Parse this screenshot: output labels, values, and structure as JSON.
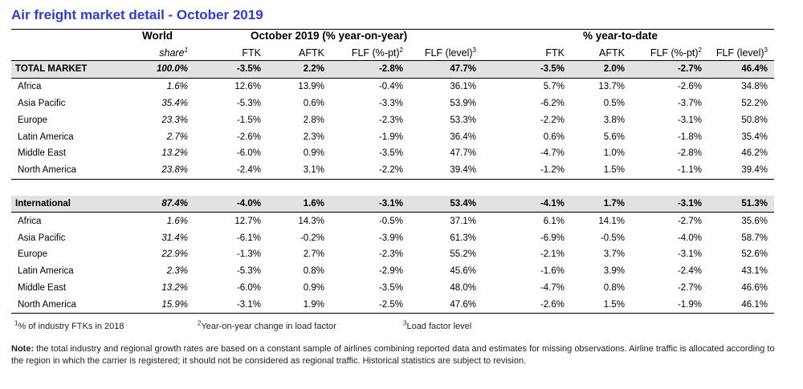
{
  "title": "Air freight market detail - October 2019",
  "header": {
    "world_label": "World",
    "share_label": "share",
    "share_sup": "1",
    "group1": "October 2019 (% year-on-year)",
    "group2": "% year-to-date",
    "cols": [
      "FTK",
      "AFTK",
      "FLF (%-pt)",
      "FLF (level)",
      "FTK",
      "AFTK",
      "FLF (%-pt)",
      "FLF (level)"
    ],
    "col_sups": [
      "",
      "",
      "2",
      "3",
      "",
      "",
      "2",
      "3"
    ]
  },
  "sections": [
    {
      "total": {
        "region": "TOTAL MARKET",
        "share": "100.0%",
        "values": [
          "-3.5%",
          "2.2%",
          "-2.8%",
          "47.7%",
          "-3.5%",
          "2.0%",
          "-2.7%",
          "46.4%"
        ]
      },
      "rows": [
        {
          "region": "Africa",
          "share": "1.6%",
          "values": [
            "12.6%",
            "13.9%",
            "-0.4%",
            "36.1%",
            "5.7%",
            "13.7%",
            "-2.6%",
            "34.8%"
          ]
        },
        {
          "region": "Asia Pacific",
          "share": "35.4%",
          "values": [
            "-5.3%",
            "0.6%",
            "-3.3%",
            "53.9%",
            "-6.2%",
            "0.5%",
            "-3.7%",
            "52.2%"
          ]
        },
        {
          "region": "Europe",
          "share": "23.3%",
          "values": [
            "-1.5%",
            "2.8%",
            "-2.3%",
            "53.3%",
            "-2.2%",
            "3.8%",
            "-3.1%",
            "50.8%"
          ]
        },
        {
          "region": "Latin America",
          "share": "2.7%",
          "values": [
            "-2.6%",
            "2.3%",
            "-1.9%",
            "36.4%",
            "0.6%",
            "5.6%",
            "-1.8%",
            "35.4%"
          ]
        },
        {
          "region": "Middle East",
          "share": "13.2%",
          "values": [
            "-6.0%",
            "0.9%",
            "-3.5%",
            "47.7%",
            "-4.7%",
            "1.0%",
            "-2.8%",
            "46.2%"
          ]
        },
        {
          "region": "North America",
          "share": "23.8%",
          "values": [
            "-2.4%",
            "3.1%",
            "-2.2%",
            "39.4%",
            "-1.2%",
            "1.5%",
            "-1.1%",
            "39.4%"
          ]
        }
      ]
    },
    {
      "total": {
        "region": "International",
        "share": "87.4%",
        "values": [
          "-4.0%",
          "1.6%",
          "-3.1%",
          "53.4%",
          "-4.1%",
          "1.7%",
          "-3.1%",
          "51.3%"
        ]
      },
      "rows": [
        {
          "region": "Africa",
          "share": "1.6%",
          "values": [
            "12.7%",
            "14.3%",
            "-0.5%",
            "37.1%",
            "6.1%",
            "14.1%",
            "-2.7%",
            "35.6%"
          ]
        },
        {
          "region": "Asia Pacific",
          "share": "31.4%",
          "values": [
            "-6.1%",
            "-0.2%",
            "-3.9%",
            "61.3%",
            "-6.9%",
            "-0.5%",
            "-4.0%",
            "58.7%"
          ]
        },
        {
          "region": "Europe",
          "share": "22.9%",
          "values": [
            "-1.3%",
            "2.7%",
            "-2.3%",
            "55.2%",
            "-2.1%",
            "3.7%",
            "-3.1%",
            "52.6%"
          ]
        },
        {
          "region": "Latin America",
          "share": "2.3%",
          "values": [
            "-5.3%",
            "0.8%",
            "-2.9%",
            "45.6%",
            "-1.6%",
            "3.9%",
            "-2.4%",
            "43.1%"
          ]
        },
        {
          "region": "Middle East",
          "share": "13.2%",
          "values": [
            "-6.0%",
            "0.9%",
            "-3.5%",
            "48.0%",
            "-4.7%",
            "0.8%",
            "-2.7%",
            "46.6%"
          ]
        },
        {
          "region": "North America",
          "share": "15.9%",
          "values": [
            "-3.1%",
            "1.9%",
            "-2.5%",
            "47.6%",
            "-2.6%",
            "1.5%",
            "-1.9%",
            "46.1%"
          ]
        }
      ]
    }
  ],
  "footnotes": [
    {
      "sup": "1",
      "text": "% of industry FTKs in 2018"
    },
    {
      "sup": "2",
      "text": "Year-on-year change in load factor"
    },
    {
      "sup": "3",
      "text": "Load factor level"
    }
  ],
  "note": {
    "label": "Note:",
    "text": " the total industry and regional growth rates are based on a constant sample of airlines combining reported data and estimates for missing observations. Airline traffic is allocated according to the region in which the carrier is registered; it should not be considered as regional traffic. Historical statistics are subject to revision."
  }
}
